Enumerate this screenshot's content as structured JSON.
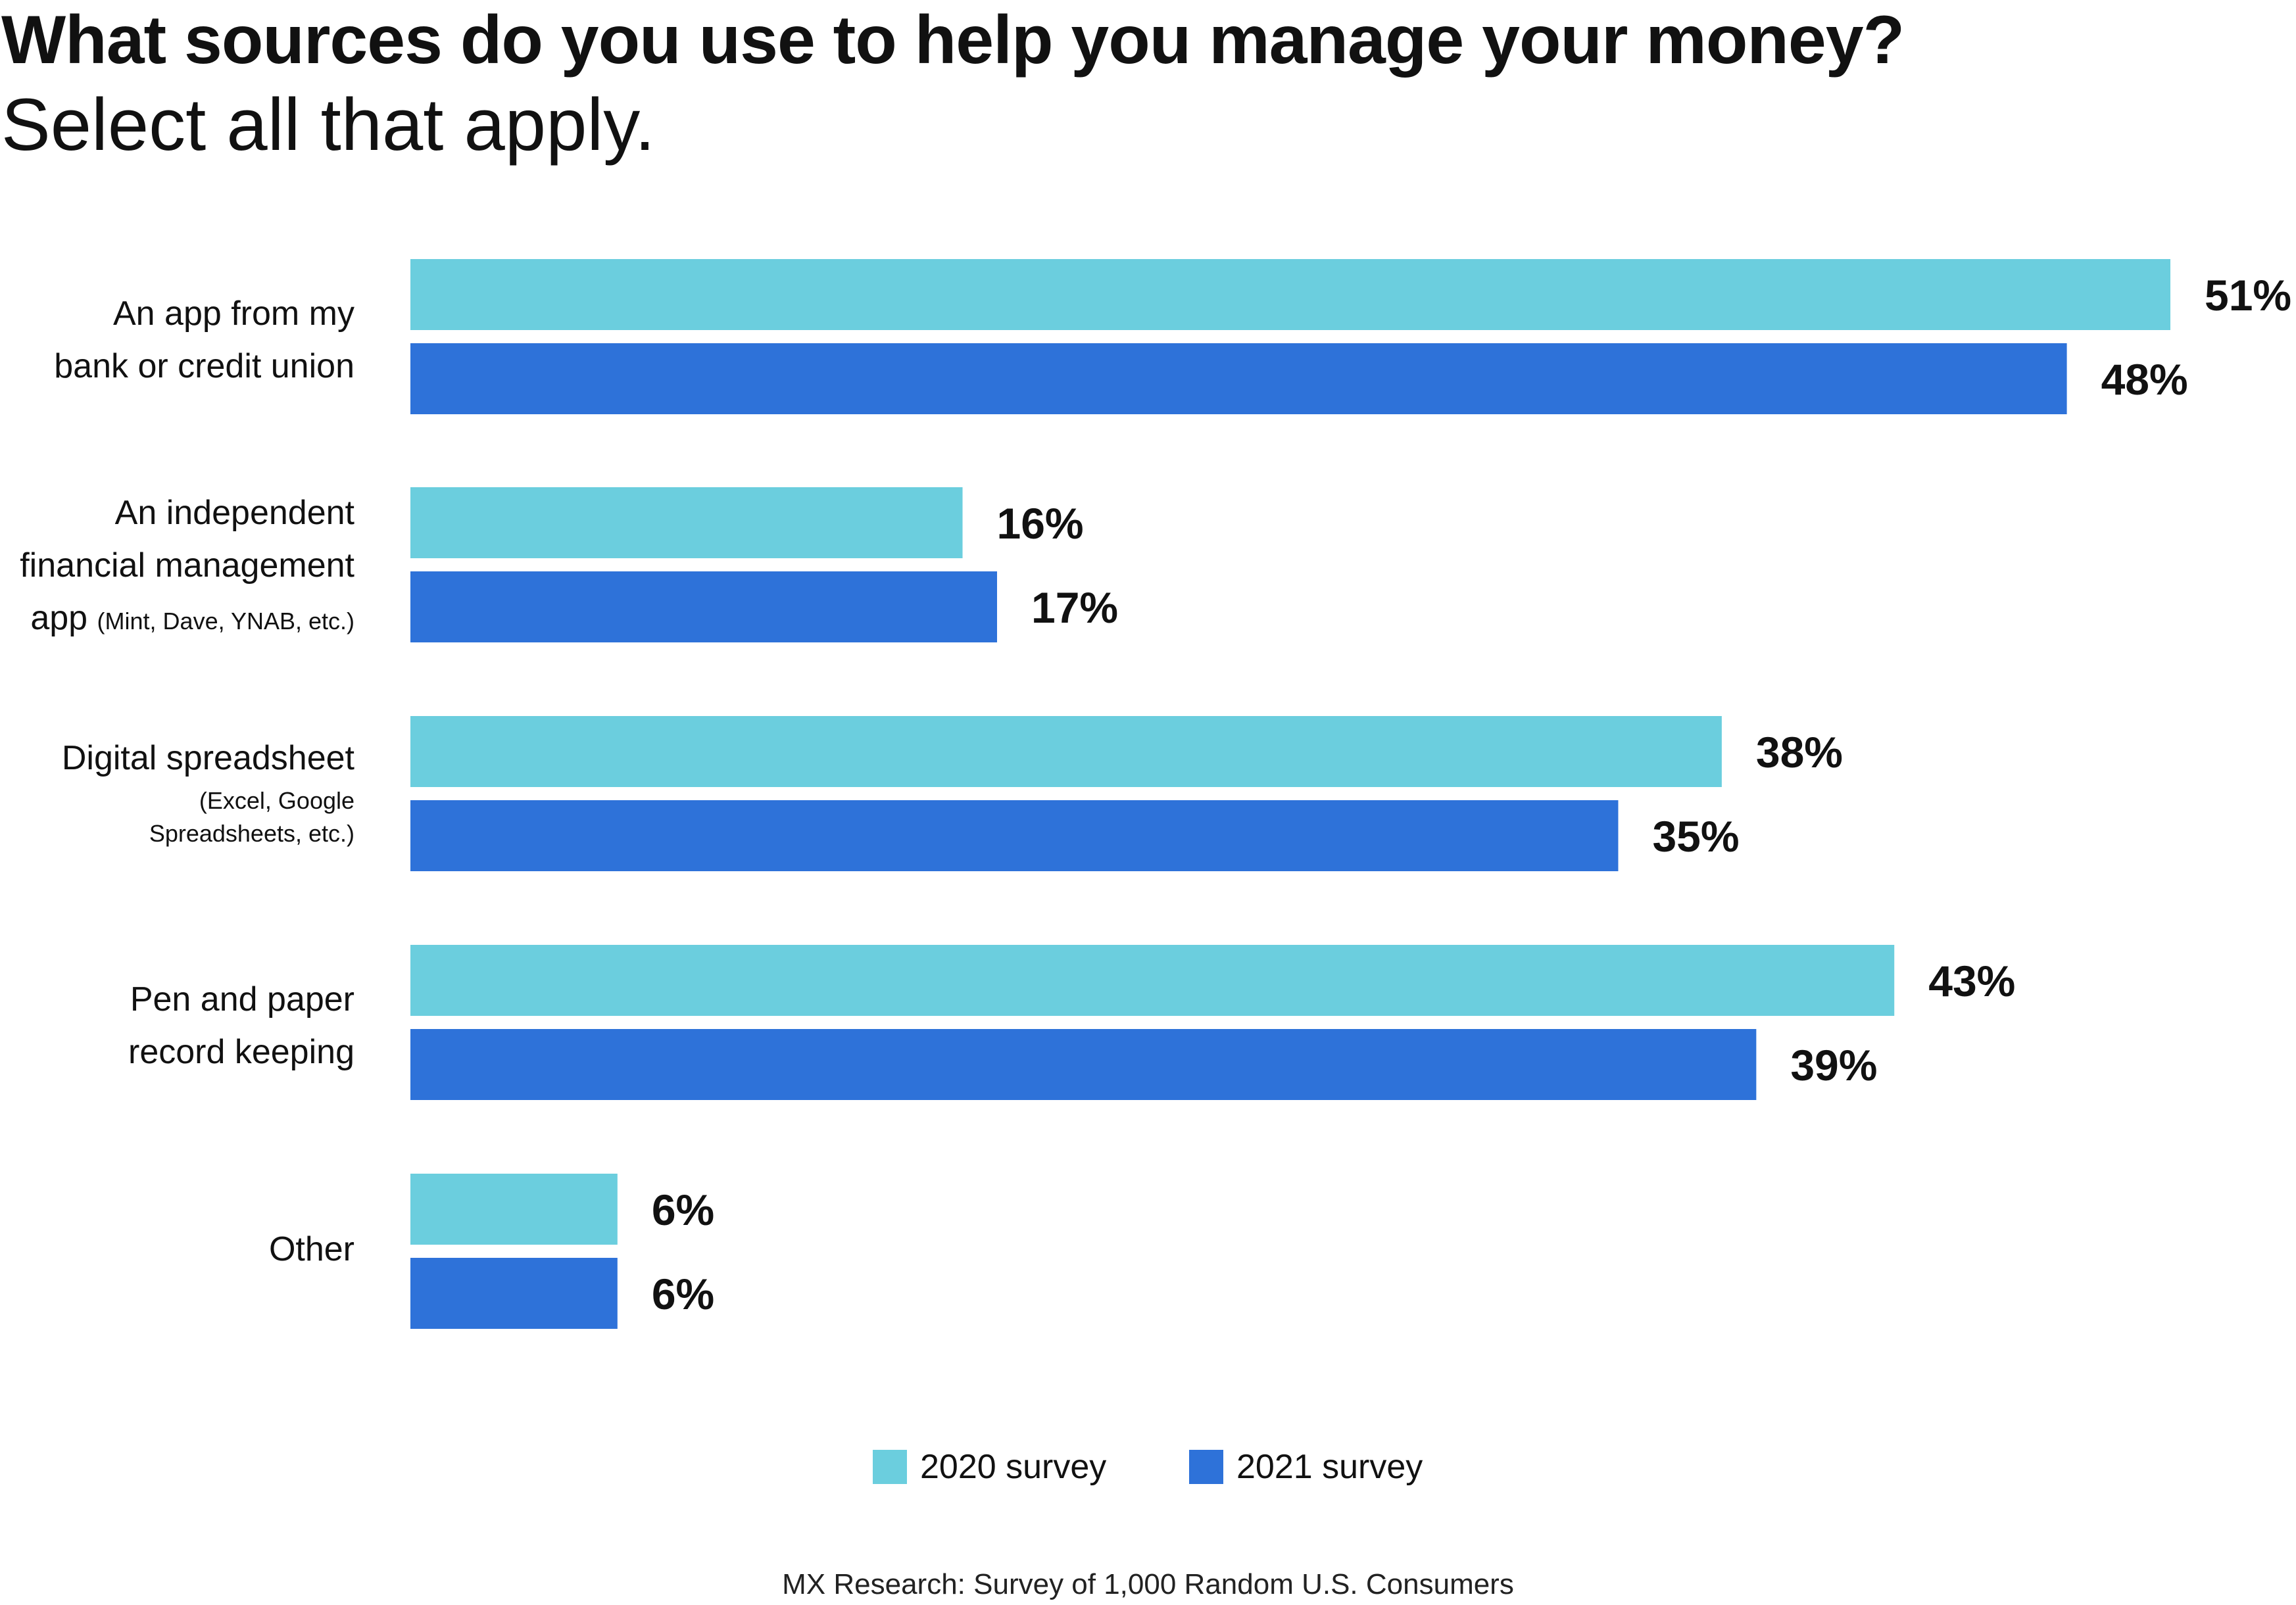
{
  "title": "What sources do you use to help you manage your money?",
  "subtitle": "Select all that apply.",
  "colors": {
    "series_2020": "#6BCEDE",
    "series_2021": "#2E72D9"
  },
  "chart_data": {
    "type": "bar",
    "orientation": "horizontal",
    "categories": [
      "An app from my bank or credit union",
      "An independent financial management app (Mint, Dave, YNAB, etc.)",
      "Digital spreadsheet (Excel, Google Spreadsheets, etc.)",
      "Pen and paper record keeping",
      "Other"
    ],
    "series": [
      {
        "name": "2020 survey",
        "values": [
          51,
          16,
          38,
          43,
          6
        ],
        "labels": [
          "51%",
          "16%",
          "38%",
          "43%",
          "6%"
        ]
      },
      {
        "name": "2021 survey",
        "values": [
          48,
          17,
          35,
          39,
          6
        ],
        "labels": [
          "48%",
          "17%",
          "35%",
          "39%",
          "6%"
        ]
      }
    ],
    "unit": "%",
    "xlim": [
      0,
      51
    ],
    "grid": false,
    "legend": "bottom-center"
  },
  "labels": {
    "cat0_line1": "An app from my",
    "cat0_line2": "bank or credit union",
    "cat1_line1": "An independent",
    "cat1_line2": "financial management",
    "cat1_line3a": "app",
    "cat1_line3b": "(Mint, Dave, YNAB, etc.)",
    "cat2_line1": "Digital spreadsheet",
    "cat2_line2": "(Excel, Google",
    "cat2_line3": "Spreadsheets, etc.)",
    "cat3_line1": "Pen and paper",
    "cat3_line2": "record keeping",
    "cat4_line1": "Other"
  },
  "legend": {
    "item_2020": "2020 survey",
    "item_2021": "2021 survey"
  },
  "source": "MX Research: Survey of 1,000 Random U.S. Consumers"
}
